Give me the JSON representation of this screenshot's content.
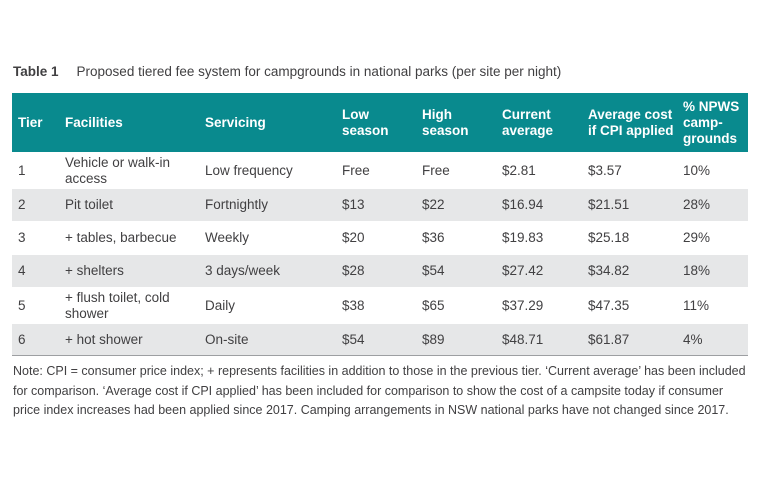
{
  "caption": {
    "label": "Table 1",
    "text": "Proposed tiered fee system for campgrounds in national parks (per site per night)"
  },
  "table": {
    "headers": [
      "Tier",
      "Facilities",
      "Servicing",
      "Low season",
      "High season",
      "Current average",
      "Average cost if CPI applied",
      "% NPWS camp-grounds"
    ],
    "rows": [
      [
        "1",
        "Vehicle or walk-in access",
        "Low frequency",
        "Free",
        "Free",
        "$2.81",
        "$3.57",
        "10%"
      ],
      [
        "2",
        "Pit toilet",
        "Fortnightly",
        "$13",
        "$22",
        "$16.94",
        "$21.51",
        "28%"
      ],
      [
        "3",
        "+ tables, barbecue",
        "Weekly",
        "$20",
        "$36",
        "$19.83",
        "$25.18",
        "29%"
      ],
      [
        "4",
        "+ shelters",
        "3 days/week",
        "$28",
        "$54",
        "$27.42",
        "$34.82",
        "18%"
      ],
      [
        "5",
        "+ flush toilet, cold shower",
        "Daily",
        "$38",
        "$65",
        "$37.29",
        "$47.35",
        "11%"
      ],
      [
        "6",
        "+ hot shower",
        "On-site",
        "$54",
        "$89",
        "$48.71",
        "$61.87",
        "4%"
      ]
    ]
  },
  "note": "Note: CPI = consumer price index; + represents facilities in addition to those in the previous tier. ‘Current average’ has been included for comparison. ‘Average cost if CPI applied’ has been included for comparison to show the cost of a campsite today if consumer price index increases had been applied since 2017. Camping arrangements in NSW national parks have not changed since 2017.",
  "colors": {
    "header_bg": "#098a8e",
    "header_text": "#ffffff",
    "alt_row_bg": "#e6e7e8",
    "body_text": "#414042"
  }
}
